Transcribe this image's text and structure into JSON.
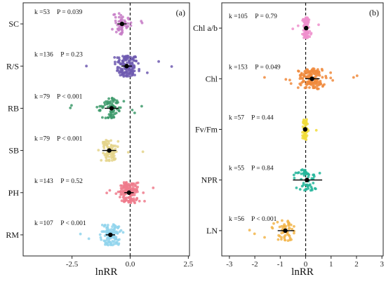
{
  "chart_data": [
    {
      "type": "scatter",
      "subtype": "beeswarm-forest",
      "panel_label": "(a)",
      "xlabel": "lnRR",
      "xlim": [
        -4.6,
        2.55
      ],
      "xticks": [
        -2.5,
        0.0,
        2.5
      ],
      "xtick_labels": [
        "-2.5",
        "0.0",
        "2.5"
      ],
      "reference_line": 0,
      "point_color_note": "each category has its own point color",
      "categories": [
        {
          "name": "SC",
          "k": 53,
          "p": "0.039",
          "k_label": "k =53",
          "p_label": "P = 0.039",
          "mean": -0.35,
          "ci": [
            -0.55,
            -0.15
          ],
          "color": "#c77cc7",
          "spread": 0.7
        },
        {
          "name": "R/S",
          "k": 136,
          "p": "0.23",
          "k_label": "k =136",
          "p_label": "P = 0.23",
          "mean": -0.15,
          "ci": [
            -0.38,
            0.08
          ],
          "color": "#6f5bb0",
          "spread": 0.9
        },
        {
          "name": "RB",
          "k": 79,
          "p": "< 0.001",
          "k_label": "k =79",
          "p_label": "P < 0.001",
          "mean": -0.8,
          "ci": [
            -1.1,
            -0.5
          ],
          "color": "#3d9a6b",
          "spread": 0.9
        },
        {
          "name": "SB",
          "k": 79,
          "p": "< 0.001",
          "k_label": "k =79",
          "p_label": "P < 0.001",
          "mean": -0.9,
          "ci": [
            -1.2,
            -0.6
          ],
          "color": "#e4d38a",
          "spread": 0.8
        },
        {
          "name": "PH",
          "k": 143,
          "p": "0.52",
          "k_label": "k =143",
          "p_label": "P = 0.52",
          "mean": -0.05,
          "ci": [
            -0.25,
            0.15
          ],
          "color": "#ee7b8c",
          "spread": 0.9
        },
        {
          "name": "RM",
          "k": 107,
          "p": "< 0.001",
          "k_label": "k =107",
          "p_label": "P < 0.001",
          "mean": -0.85,
          "ci": [
            -1.05,
            -0.65
          ],
          "color": "#8fd3ec",
          "spread": 0.8
        }
      ]
    },
    {
      "type": "scatter",
      "subtype": "beeswarm-forest",
      "panel_label": "(b)",
      "xlabel": "lnRR",
      "xlim": [
        -3.3,
        3.05
      ],
      "xticks": [
        -3,
        -2,
        -1,
        0,
        1,
        2,
        3
      ],
      "xtick_labels": [
        "-3",
        "-2",
        "-1",
        "0",
        "1",
        "2",
        "3"
      ],
      "reference_line": 0,
      "point_color_note": "each category has its own point color",
      "categories": [
        {
          "name": "Chl a/b",
          "k": 105,
          "p": "0.79",
          "k_label": "k =105",
          "p_label": "P = 0.79",
          "mean": 0.02,
          "ci": [
            -0.05,
            0.1
          ],
          "color": "#ef8fcc",
          "spread": 0.3
        },
        {
          "name": "Chl",
          "k": 153,
          "p": "0.049",
          "k_label": "k =153",
          "p_label": "P = 0.049",
          "mean": 0.25,
          "ci": [
            0.0,
            0.55
          ],
          "color": "#f08a3c",
          "spread": 1.0
        },
        {
          "name": "Fv/Fm",
          "k": 57,
          "p": "0.44",
          "k_label": "k =57",
          "p_label": "P = 0.44",
          "mean": -0.02,
          "ci": [
            -0.1,
            0.05
          ],
          "color": "#f1dc3a",
          "spread": 0.2
        },
        {
          "name": "NPR",
          "k": 55,
          "p": "0.84",
          "k_label": "k =55",
          "p_label": "P = 0.84",
          "mean": 0.05,
          "ci": [
            -0.5,
            0.65
          ],
          "color": "#22b59a",
          "spread": 1.0
        },
        {
          "name": "LN",
          "k": 56,
          "p": "< 0.001",
          "k_label": "k =56",
          "p_label": "P < 0.001",
          "mean": -0.8,
          "ci": [
            -1.1,
            -0.45
          ],
          "color": "#f2b54a",
          "spread": 0.8
        }
      ]
    }
  ]
}
